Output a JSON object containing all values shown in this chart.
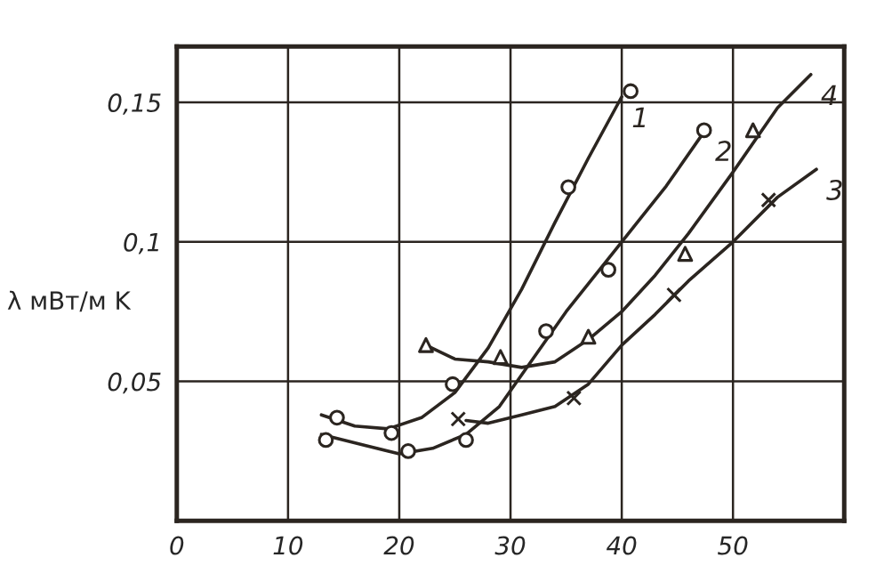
{
  "chart_data": {
    "type": "line",
    "ylabel": "λ мВт/м K",
    "xlim": [
      0,
      60
    ],
    "xticks": [
      0,
      10,
      20,
      30,
      40,
      50
    ],
    "ylim": [
      0,
      0.17
    ],
    "yticks": [
      {
        "value": 0.05,
        "label": "0,05"
      },
      {
        "value": 0.1,
        "label": "0,1"
      },
      {
        "value": 0.15,
        "label": "0,15"
      }
    ],
    "grid": true,
    "legend": false,
    "series": [
      {
        "name": "1",
        "color": "#2b2520",
        "marker": "none",
        "x": [
          13,
          16,
          19,
          22,
          25,
          28,
          31,
          34,
          37,
          40
        ],
        "values": [
          0.038,
          0.034,
          0.033,
          0.037,
          0.046,
          0.062,
          0.083,
          0.107,
          0.13,
          0.152
        ]
      },
      {
        "type": "scatter",
        "color": "#2b2520",
        "marker": "circle",
        "x": [
          14.4,
          19.3,
          24.8,
          35.2,
          40.8
        ],
        "values": [
          0.037,
          0.0315,
          0.049,
          0.1196,
          0.154
        ]
      },
      {
        "name": "2",
        "color": "#2b2520",
        "marker": "none",
        "x": [
          13,
          17,
          20,
          23,
          26,
          29,
          32,
          35,
          40,
          44,
          47.5
        ],
        "values": [
          0.031,
          0.027,
          0.024,
          0.026,
          0.031,
          0.041,
          0.058,
          0.075,
          0.1,
          0.12,
          0.14
        ]
      },
      {
        "type": "scatter",
        "color": "#2b2520",
        "marker": "circle",
        "x": [
          13.4,
          20.8,
          26,
          33.2,
          38.8,
          47.4
        ],
        "values": [
          0.029,
          0.025,
          0.029,
          0.068,
          0.09,
          0.14
        ]
      },
      {
        "name": "4",
        "color": "#2b2520",
        "marker": "none",
        "x": [
          22.4,
          25,
          28,
          31,
          34,
          37,
          40,
          43,
          46,
          50,
          54,
          57
        ],
        "values": [
          0.063,
          0.058,
          0.057,
          0.055,
          0.057,
          0.065,
          0.075,
          0.088,
          0.103,
          0.125,
          0.148,
          0.16
        ]
      },
      {
        "type": "scatter",
        "color": "#2b2520",
        "marker": "triangle",
        "x": [
          22.4,
          29.1,
          37,
          45.7,
          51.8
        ],
        "values": [
          0.063,
          0.0587,
          0.066,
          0.0957,
          0.14
        ]
      },
      {
        "name": "3",
        "color": "#2b2520",
        "marker": "none",
        "x": [
          26,
          28,
          31,
          34,
          37,
          40,
          43,
          46,
          50,
          54,
          57.5
        ],
        "values": [
          0.036,
          0.035,
          0.038,
          0.041,
          0.049,
          0.063,
          0.074,
          0.086,
          0.1,
          0.116,
          0.126
        ]
      },
      {
        "type": "scatter",
        "color": "#2b2520",
        "marker": "cross",
        "x": [
          25.3,
          35.7,
          44.7,
          53.2
        ],
        "values": [
          0.0365,
          0.044,
          0.081,
          0.115
        ]
      }
    ]
  }
}
